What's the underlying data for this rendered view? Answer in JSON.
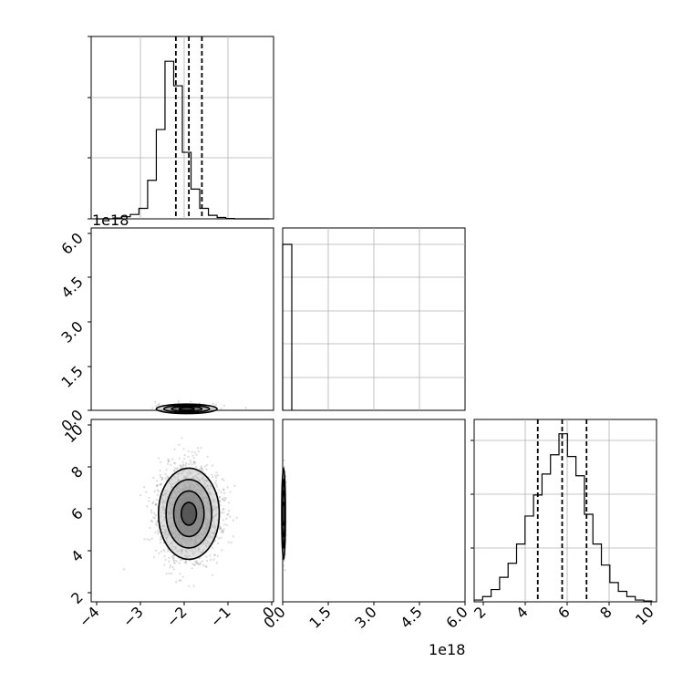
{
  "chart_data": [
    {
      "type": "histogram",
      "panel": "marginal-param-1",
      "bin_edges": [
        -4.0,
        -3.8,
        -3.6,
        -3.4,
        -3.2,
        -3.0,
        -2.8,
        -2.6,
        -2.4,
        -2.2,
        -2.0,
        -1.8,
        -1.6,
        -1.4,
        -1.2,
        -1.0,
        -0.8,
        -0.6,
        -0.4,
        -0.2,
        0.0
      ],
      "counts": [
        0,
        0,
        0.005,
        0.012,
        0.025,
        0.06,
        0.22,
        0.51,
        0.9,
        0.76,
        0.38,
        0.17,
        0.06,
        0.02,
        0.008,
        0.002,
        0,
        0,
        0,
        0
      ],
      "quantiles": [
        -2.15,
        -1.85,
        -1.55
      ],
      "xlim": [
        -4.1,
        0.1
      ],
      "grid": true
    },
    {
      "type": "histogram",
      "panel": "marginal-param-2",
      "x_exponent": "1e18",
      "bin_edges": [
        0.0,
        0.2
      ],
      "counts": [
        1.0
      ],
      "xlim": [
        0.0,
        6.0
      ],
      "xticks": [
        "0.0",
        "1.5",
        "3.0",
        "4.5",
        "6.0"
      ],
      "grid": true
    },
    {
      "type": "histogram",
      "panel": "marginal-param-3",
      "bin_edges": [
        1.6,
        2.0,
        2.4,
        2.8,
        3.2,
        3.6,
        4.0,
        4.4,
        4.8,
        5.2,
        5.6,
        6.0,
        6.4,
        6.8,
        7.2,
        7.6,
        8.0,
        8.4,
        8.8,
        9.2,
        9.6,
        10.0
      ],
      "counts": [
        0.01,
        0.03,
        0.07,
        0.14,
        0.22,
        0.33,
        0.49,
        0.61,
        0.73,
        0.84,
        0.96,
        0.83,
        0.72,
        0.5,
        0.33,
        0.21,
        0.11,
        0.06,
        0.03,
        0.01,
        0.005
      ],
      "quantiles": [
        4.6,
        5.75,
        6.9
      ],
      "xlim": [
        1.6,
        10.2
      ],
      "xticks": [
        "2",
        "4",
        "6",
        "8",
        "10"
      ],
      "grid": true
    },
    {
      "type": "scatter-density",
      "panel": "param-1-vs-param-2",
      "y_exponent": "1e18",
      "center": [
        -1.9,
        0.05
      ],
      "spread": [
        0.35,
        0.08
      ],
      "xlim": [
        -4.1,
        0.1
      ],
      "ylim": [
        0.0,
        6.2
      ],
      "yticks": [
        "0.0",
        "1.5",
        "3.0",
        "4.5",
        "6.0"
      ]
    },
    {
      "type": "scatter-density",
      "panel": "param-1-vs-param-3",
      "center": [
        -1.85,
        5.75
      ],
      "spread": [
        0.35,
        1.1
      ],
      "xlim": [
        -4.1,
        0.1
      ],
      "ylim": [
        1.5,
        10.3
      ],
      "xticks": [
        "−4",
        "−3",
        "−2",
        "−1",
        "0"
      ],
      "yticks": [
        "2",
        "4",
        "6",
        "8",
        "10"
      ]
    },
    {
      "type": "scatter-density",
      "panel": "param-2-vs-param-3",
      "center": [
        0.03,
        5.75
      ],
      "spread": [
        0.03,
        1.1
      ],
      "xlim": [
        0.0,
        6.0
      ],
      "ylim": [
        1.5,
        10.3
      ],
      "xticks": [
        "0.0",
        "1.5",
        "3.0",
        "4.5",
        "6.0"
      ]
    }
  ],
  "labels": {
    "exp_left": "1e18",
    "exp_bottom": "1e18",
    "xticks_col1": [
      "−4",
      "−3",
      "−2",
      "−1",
      "0"
    ],
    "xticks_col2": [
      "0.0",
      "1.5",
      "3.0",
      "4.5",
      "6.0"
    ],
    "xticks_col3": [
      "2",
      "4",
      "6",
      "8",
      "10"
    ],
    "yticks_row2": [
      "6.0",
      "4.5",
      "3.0",
      "1.5",
      "0.0"
    ],
    "yticks_row3": [
      "10",
      "8",
      "6",
      "4",
      "2"
    ]
  }
}
